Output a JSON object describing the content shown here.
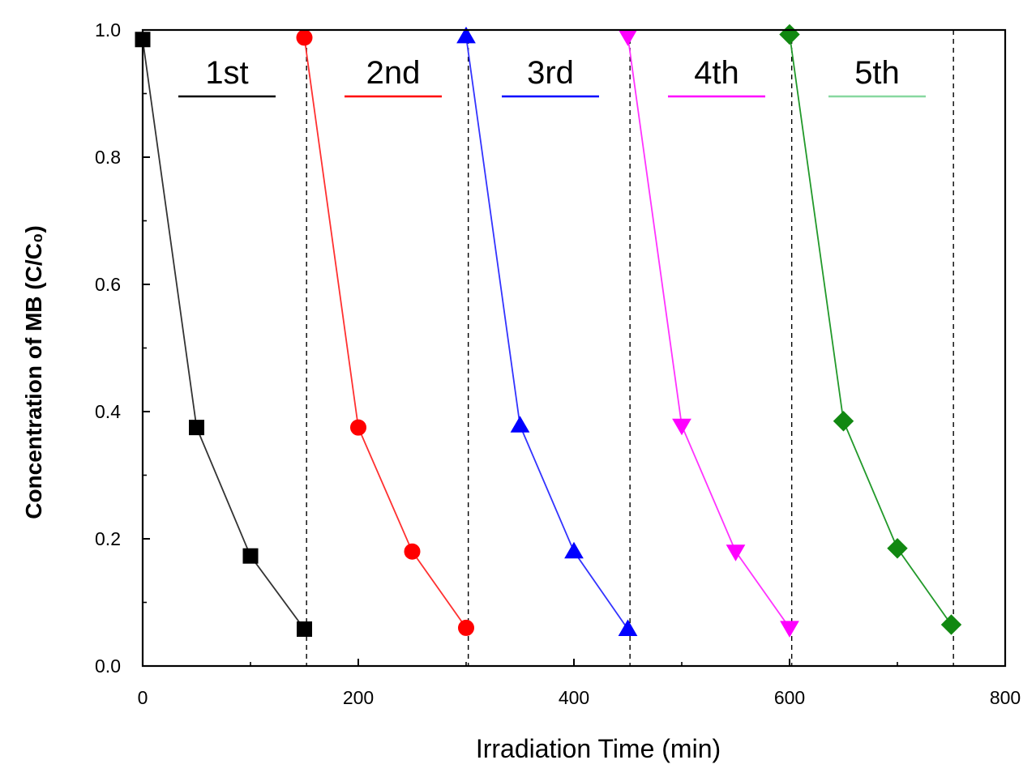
{
  "chart_data": {
    "type": "line",
    "title": "",
    "xlabel": "Irradiation Time (min)",
    "ylabel": "Concentration of MB (C/C₀)",
    "xlim": [
      0,
      800
    ],
    "ylim": [
      0.0,
      1.0
    ],
    "x_ticks": [
      0,
      200,
      400,
      600,
      800
    ],
    "y_ticks": [
      0.0,
      0.2,
      0.4,
      0.6,
      0.8,
      1.0
    ],
    "x_tick_labels": [
      "0",
      "200",
      "400",
      "600",
      "800"
    ],
    "y_tick_labels": [
      "0.0",
      "0.2",
      "0.4",
      "0.6",
      "0.8",
      "1.0"
    ],
    "cycle_dividers": [
      152,
      302,
      452,
      602,
      752
    ],
    "series": [
      {
        "name": "1st",
        "color": "#000000",
        "line_color": "#333333",
        "marker": "square",
        "x": [
          0,
          50,
          100,
          150
        ],
        "values": [
          0.985,
          0.375,
          0.173,
          0.058
        ]
      },
      {
        "name": "2nd",
        "color": "#ff0000",
        "line_color": "#ff3030",
        "marker": "circle",
        "x": [
          150,
          200,
          250,
          300
        ],
        "values": [
          0.988,
          0.375,
          0.18,
          0.06
        ]
      },
      {
        "name": "3rd",
        "color": "#0000ff",
        "line_color": "#3333ff",
        "marker": "triangle-up",
        "x": [
          300,
          350,
          400,
          450
        ],
        "values": [
          0.99,
          0.378,
          0.18,
          0.058
        ]
      },
      {
        "name": "4th",
        "color": "#ff00ff",
        "line_color": "#ff33ff",
        "marker": "triangle-down",
        "x": [
          450,
          500,
          550,
          600
        ],
        "values": [
          0.99,
          0.378,
          0.18,
          0.06
        ]
      },
      {
        "name": "5th",
        "color": "#118811",
        "line_color": "#22992a",
        "legend_color": "#88d8a0",
        "marker": "diamond",
        "x": [
          600,
          650,
          700,
          750
        ],
        "values": [
          0.993,
          0.385,
          0.185,
          0.065
        ]
      }
    ]
  }
}
